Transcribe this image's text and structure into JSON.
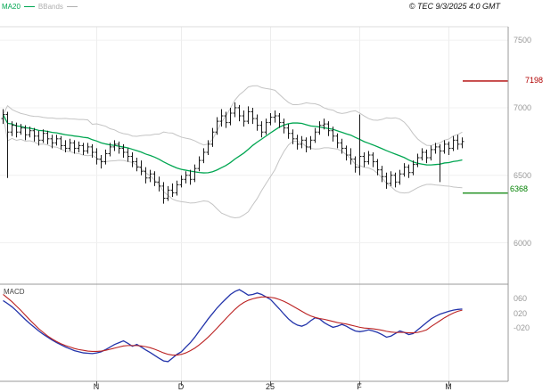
{
  "header": {
    "legend": [
      {
        "label": "MA20",
        "color": "#00a651"
      },
      {
        "label": "BBands",
        "color": "#b0b0b0"
      }
    ],
    "copyright": "© TEC 9/3/2025 4:0 GMT"
  },
  "price_axis": {
    "ticks": [
      "7500",
      "7000",
      "6500",
      "6000"
    ],
    "tick_values": [
      7500,
      7000,
      6500,
      6000
    ],
    "levels": [
      {
        "label": "7198",
        "value": 7198,
        "color": "#b00000",
        "role": "resistance"
      },
      {
        "label": "6368",
        "value": 6368,
        "color": "#008000",
        "role": "support"
      }
    ]
  },
  "macd_panel": {
    "label": "MACD",
    "ticks": [
      "060",
      "020",
      "-020"
    ],
    "tick_values": [
      0.6,
      0.2,
      -0.2
    ]
  },
  "x_axis": {
    "labels": [
      {
        "label": "N",
        "bar": 21
      },
      {
        "label": "D",
        "bar": 40
      },
      {
        "label": "25",
        "bar": 60
      },
      {
        "label": "F",
        "bar": 80
      },
      {
        "label": "M",
        "bar": 100
      }
    ]
  },
  "chart_data": {
    "type": "candlestick+macd",
    "title": "",
    "price_panel": {
      "ylim": [
        5700,
        7600
      ],
      "yticks": [
        6000,
        6500,
        7000,
        7500
      ],
      "overlays": [
        "MA20",
        "Bollinger Bands (20,2)"
      ],
      "levels": {
        "resistance": 7198,
        "support": 6368
      },
      "ohlc": [
        [
          6920,
          6990,
          6880,
          6950
        ],
        [
          6950,
          6970,
          6480,
          6820
        ],
        [
          6820,
          6900,
          6790,
          6870
        ],
        [
          6870,
          6890,
          6780,
          6820
        ],
        [
          6820,
          6880,
          6800,
          6850
        ],
        [
          6850,
          6870,
          6760,
          6800
        ],
        [
          6800,
          6860,
          6780,
          6830
        ],
        [
          6830,
          6850,
          6750,
          6790
        ],
        [
          6790,
          6830,
          6720,
          6760
        ],
        [
          6760,
          6840,
          6740,
          6810
        ],
        [
          6810,
          6830,
          6730,
          6770
        ],
        [
          6770,
          6800,
          6700,
          6740
        ],
        [
          6740,
          6800,
          6720,
          6770
        ],
        [
          6770,
          6790,
          6690,
          6720
        ],
        [
          6720,
          6760,
          6670,
          6700
        ],
        [
          6700,
          6770,
          6680,
          6740
        ],
        [
          6740,
          6760,
          6660,
          6700
        ],
        [
          6700,
          6750,
          6670,
          6720
        ],
        [
          6720,
          6740,
          6650,
          6680
        ],
        [
          6680,
          6740,
          6660,
          6710
        ],
        [
          6710,
          6730,
          6630,
          6670
        ],
        [
          6670,
          6700,
          6580,
          6620
        ],
        [
          6620,
          6650,
          6550,
          6600
        ],
        [
          6600,
          6690,
          6580,
          6660
        ],
        [
          6660,
          6740,
          6640,
          6710
        ],
        [
          6710,
          6760,
          6680,
          6730
        ],
        [
          6730,
          6750,
          6660,
          6700
        ],
        [
          6700,
          6730,
          6630,
          6670
        ],
        [
          6670,
          6700,
          6600,
          6640
        ],
        [
          6640,
          6670,
          6560,
          6600
        ],
        [
          6600,
          6630,
          6530,
          6560
        ],
        [
          6560,
          6610,
          6500,
          6530
        ],
        [
          6530,
          6560,
          6440,
          6480
        ],
        [
          6480,
          6540,
          6450,
          6510
        ],
        [
          6510,
          6530,
          6420,
          6450
        ],
        [
          6450,
          6490,
          6380,
          6420
        ],
        [
          6420,
          6450,
          6290,
          6330
        ],
        [
          6330,
          6420,
          6310,
          6390
        ],
        [
          6390,
          6440,
          6340,
          6370
        ],
        [
          6370,
          6460,
          6350,
          6430
        ],
        [
          6430,
          6500,
          6410,
          6470
        ],
        [
          6470,
          6530,
          6440,
          6500
        ],
        [
          6500,
          6540,
          6430,
          6470
        ],
        [
          6470,
          6580,
          6450,
          6550
        ],
        [
          6550,
          6640,
          6530,
          6610
        ],
        [
          6610,
          6700,
          6590,
          6670
        ],
        [
          6670,
          6760,
          6650,
          6730
        ],
        [
          6730,
          6850,
          6710,
          6820
        ],
        [
          6820,
          6930,
          6800,
          6900
        ],
        [
          6900,
          6990,
          6860,
          6940
        ],
        [
          6940,
          6970,
          6850,
          6890
        ],
        [
          6890,
          7000,
          6870,
          6960
        ],
        [
          6960,
          7040,
          6930,
          7000
        ],
        [
          7000,
          7020,
          6900,
          6940
        ],
        [
          6940,
          6980,
          6860,
          6900
        ],
        [
          6900,
          7010,
          6880,
          6970
        ],
        [
          6970,
          7000,
          6880,
          6920
        ],
        [
          6920,
          6950,
          6830,
          6870
        ],
        [
          6870,
          6900,
          6780,
          6820
        ],
        [
          6820,
          6920,
          6800,
          6890
        ],
        [
          6890,
          6960,
          6870,
          6930
        ],
        [
          6930,
          6980,
          6890,
          6940
        ],
        [
          6940,
          6960,
          6850,
          6890
        ],
        [
          6890,
          6920,
          6810,
          6850
        ],
        [
          6850,
          6880,
          6770,
          6810
        ],
        [
          6810,
          6840,
          6730,
          6770
        ],
        [
          6770,
          6800,
          6690,
          6730
        ],
        [
          6730,
          6790,
          6700,
          6760
        ],
        [
          6760,
          6780,
          6670,
          6710
        ],
        [
          6710,
          6790,
          6690,
          6760
        ],
        [
          6760,
          6850,
          6740,
          6820
        ],
        [
          6820,
          6900,
          6800,
          6870
        ],
        [
          6870,
          6920,
          6840,
          6880
        ],
        [
          6880,
          6900,
          6790,
          6830
        ],
        [
          6830,
          6860,
          6750,
          6790
        ],
        [
          6790,
          6810,
          6700,
          6740
        ],
        [
          6740,
          6770,
          6660,
          6700
        ],
        [
          6700,
          6720,
          6610,
          6650
        ],
        [
          6650,
          6700,
          6580,
          6620
        ],
        [
          6620,
          6640,
          6520,
          6560
        ],
        [
          6560,
          6950,
          6500,
          6640
        ],
        [
          6640,
          6670,
          6560,
          6600
        ],
        [
          6600,
          6680,
          6580,
          6650
        ],
        [
          6650,
          6670,
          6560,
          6600
        ],
        [
          6600,
          6620,
          6500,
          6540
        ],
        [
          6540,
          6570,
          6450,
          6490
        ],
        [
          6490,
          6520,
          6400,
          6440
        ],
        [
          6440,
          6530,
          6420,
          6500
        ],
        [
          6500,
          6520,
          6410,
          6450
        ],
        [
          6450,
          6540,
          6430,
          6510
        ],
        [
          6510,
          6590,
          6490,
          6560
        ],
        [
          6560,
          6580,
          6480,
          6520
        ],
        [
          6520,
          6610,
          6500,
          6580
        ],
        [
          6580,
          6660,
          6560,
          6630
        ],
        [
          6630,
          6700,
          6610,
          6670
        ],
        [
          6670,
          6690,
          6590,
          6630
        ],
        [
          6630,
          6720,
          6610,
          6690
        ],
        [
          6690,
          6740,
          6660,
          6710
        ],
        [
          6710,
          6730,
          6450,
          6680
        ],
        [
          6680,
          6760,
          6660,
          6730
        ],
        [
          6730,
          6750,
          6650,
          6700
        ],
        [
          6700,
          6790,
          6680,
          6760
        ],
        [
          6760,
          6800,
          6690,
          6730
        ],
        [
          6730,
          6780,
          6700,
          6750
        ]
      ]
    },
    "macd": {
      "ylim": [
        -1.65,
        0.95
      ],
      "yticks": [
        0.6,
        0.2,
        -0.2
      ],
      "series": [
        {
          "name": "MACD",
          "color": "#2233aa",
          "values": [
            0.55,
            0.47,
            0.38,
            0.27,
            0.15,
            0.03,
            -0.08,
            -0.18,
            -0.28,
            -0.37,
            -0.45,
            -0.53,
            -0.6,
            -0.66,
            -0.72,
            -0.77,
            -0.82,
            -0.85,
            -0.88,
            -0.89,
            -0.9,
            -0.88,
            -0.85,
            -0.79,
            -0.72,
            -0.65,
            -0.6,
            -0.55,
            -0.62,
            -0.7,
            -0.65,
            -0.72,
            -0.8,
            -0.87,
            -0.95,
            -1.03,
            -1.1,
            -1.12,
            -1.02,
            -0.92,
            -0.85,
            -0.72,
            -0.6,
            -0.45,
            -0.28,
            -0.12,
            0.05,
            0.2,
            0.35,
            0.48,
            0.6,
            0.72,
            0.8,
            0.85,
            0.78,
            0.7,
            0.72,
            0.76,
            0.72,
            0.65,
            0.58,
            0.45,
            0.32,
            0.18,
            0.05,
            -0.05,
            -0.12,
            -0.15,
            -0.1,
            0.0,
            0.08,
            0.05,
            -0.05,
            -0.12,
            -0.18,
            -0.15,
            -0.1,
            -0.15,
            -0.22,
            -0.28,
            -0.3,
            -0.28,
            -0.25,
            -0.28,
            -0.32,
            -0.38,
            -0.45,
            -0.42,
            -0.35,
            -0.28,
            -0.32,
            -0.38,
            -0.35,
            -0.25,
            -0.15,
            -0.05,
            0.05,
            0.12,
            0.18,
            0.22,
            0.26,
            0.29,
            0.31,
            0.32
          ]
        },
        {
          "name": "Signal",
          "color": "#bb2222",
          "values": [
            0.72,
            0.62,
            0.52,
            0.4,
            0.28,
            0.15,
            0.02,
            -0.1,
            -0.22,
            -0.32,
            -0.42,
            -0.5,
            -0.57,
            -0.63,
            -0.68,
            -0.72,
            -0.76,
            -0.79,
            -0.81,
            -0.83,
            -0.84,
            -0.84,
            -0.83,
            -0.81,
            -0.78,
            -0.75,
            -0.72,
            -0.69,
            -0.68,
            -0.68,
            -0.68,
            -0.69,
            -0.71,
            -0.74,
            -0.78,
            -0.83,
            -0.88,
            -0.92,
            -0.94,
            -0.94,
            -0.92,
            -0.88,
            -0.82,
            -0.75,
            -0.66,
            -0.56,
            -0.45,
            -0.33,
            -0.2,
            -0.07,
            0.06,
            0.19,
            0.31,
            0.42,
            0.5,
            0.56,
            0.6,
            0.63,
            0.65,
            0.65,
            0.64,
            0.62,
            0.58,
            0.53,
            0.47,
            0.4,
            0.33,
            0.26,
            0.19,
            0.13,
            0.09,
            0.06,
            0.04,
            0.01,
            -0.02,
            -0.05,
            -0.07,
            -0.09,
            -0.12,
            -0.15,
            -0.18,
            -0.2,
            -0.21,
            -0.22,
            -0.24,
            -0.26,
            -0.29,
            -0.31,
            -0.32,
            -0.32,
            -0.32,
            -0.33,
            -0.33,
            -0.32,
            -0.29,
            -0.25,
            -0.16,
            -0.08,
            0.0,
            0.08,
            0.15,
            0.21,
            0.26,
            0.29
          ]
        }
      ]
    }
  }
}
